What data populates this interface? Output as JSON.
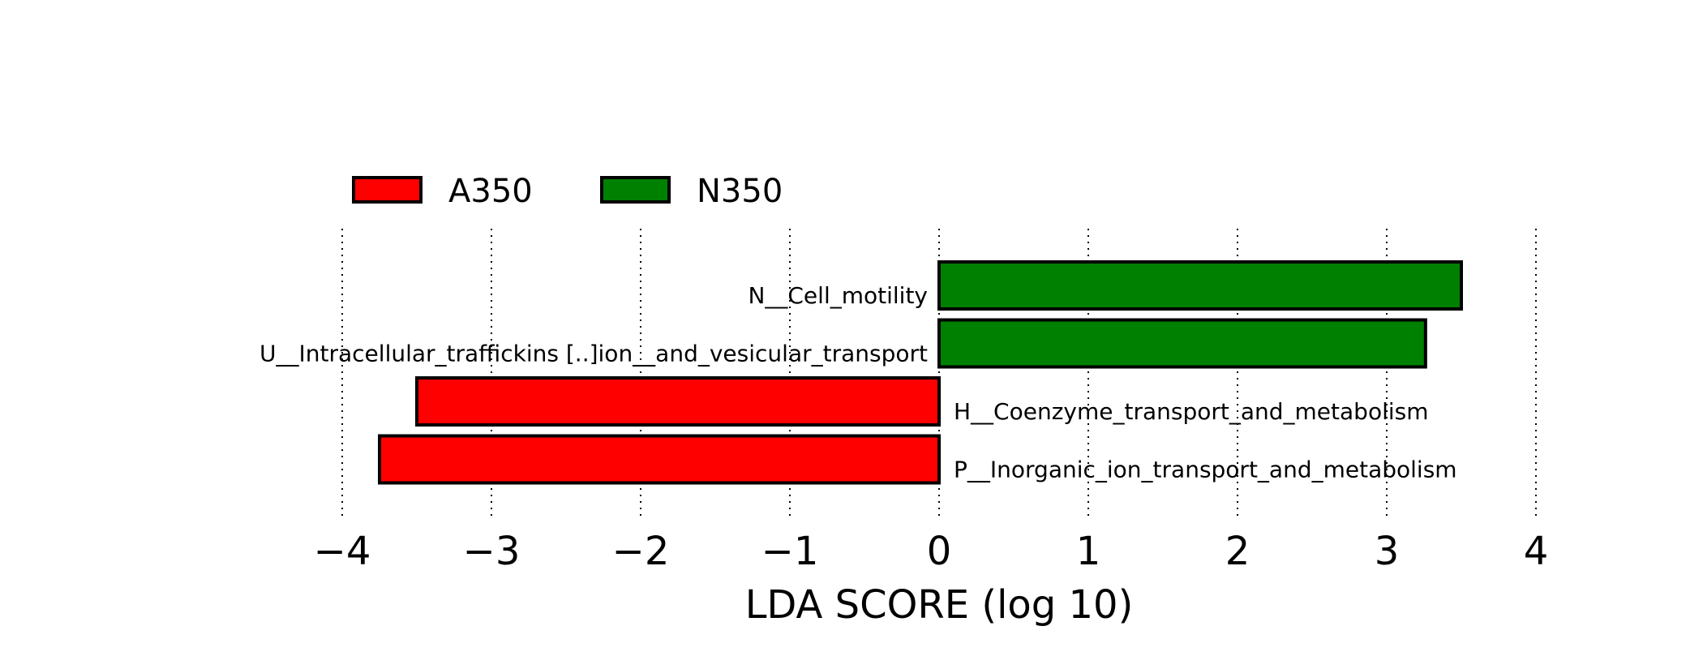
{
  "chart_data": {
    "type": "bar",
    "orientation": "horizontal",
    "xlabel": "LDA SCORE (log 10)",
    "xlim": [
      -4,
      4
    ],
    "xticks": [
      -4,
      -3,
      -2,
      -1,
      0,
      1,
      2,
      3,
      4
    ],
    "xtick_labels": [
      "−4",
      "−3",
      "−2",
      "−1",
      "0",
      "1",
      "2",
      "3",
      "4"
    ],
    "grid": "vertical dotted",
    "legend": {
      "placement": "top-left",
      "entries": [
        {
          "label": "A350",
          "color": "#ff0000"
        },
        {
          "label": "N350",
          "color": "#008000"
        }
      ]
    },
    "bars": [
      {
        "label": "N__Cell_motility",
        "value": 3.5,
        "group": "N350",
        "color": "#008000"
      },
      {
        "label": "U__Intracellular_traffickins [..]ion__and_vesicular_transport",
        "value": 3.26,
        "group": "N350",
        "color": "#008000"
      },
      {
        "label": "H__Coenzyme_transport_and_metabolism",
        "value": -3.5,
        "group": "A350",
        "color": "#ff0000"
      },
      {
        "label": "P__Inorganic_ion_transport_and_metabolism",
        "value": -3.75,
        "group": "A350",
        "color": "#ff0000"
      }
    ]
  }
}
